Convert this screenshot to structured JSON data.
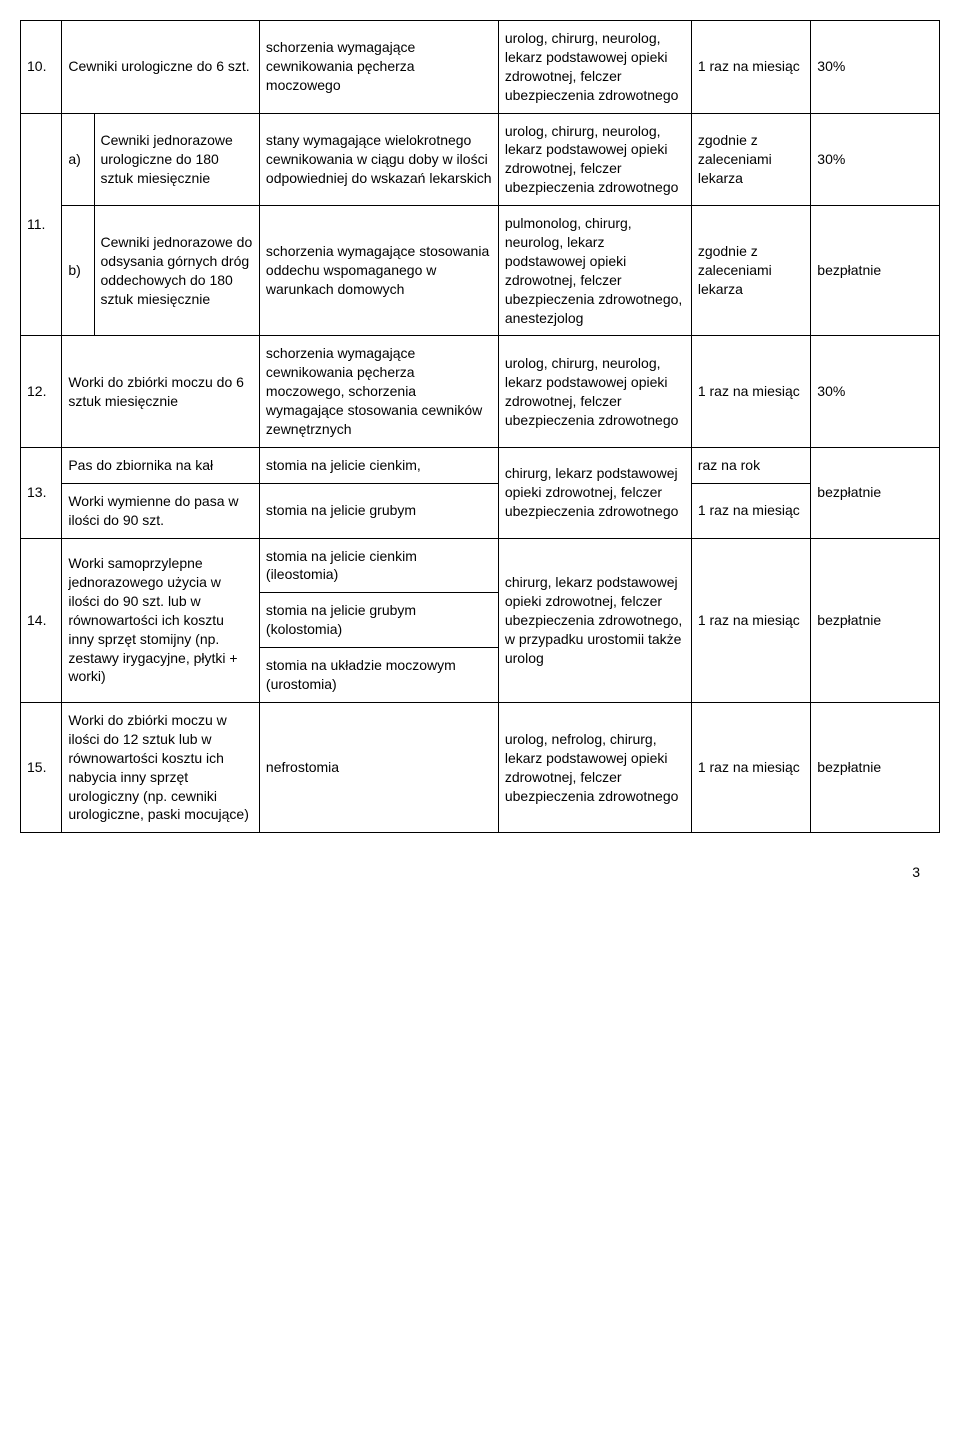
{
  "row10": {
    "num": "10.",
    "name": "Cewniki urologiczne do 6 szt.",
    "indication": "schorzenia wymagające cewnikowania pęcherza moczowego",
    "prescriber": "urolog, chirurg, neurolog, lekarz podstawowej opieki zdrowotnej, felczer ubezpieczenia zdrowotnego",
    "freq": "1 raz na miesiąc",
    "pay": "30%"
  },
  "row11": {
    "num": "11.",
    "a": {
      "letter": "a)",
      "name": "Cewniki jednorazowe urologiczne do 180 sztuk miesięcznie",
      "indication": "stany wymagające wielokrotnego cewnikowania w ciągu doby w ilości odpowiedniej do wskazań lekarskich",
      "prescriber": "urolog, chirurg, neurolog, lekarz podstawowej opieki zdrowotnej, felczer ubezpieczenia zdrowotnego",
      "freq": "zgodnie z zaleceniami lekarza",
      "pay": "30%"
    },
    "b": {
      "letter": "b)",
      "name": "Cewniki jednorazowe do odsysania górnych dróg oddechowych do 180 sztuk miesięcznie",
      "indication": "schorzenia wymagające stosowania oddechu wspomaganego w warunkach domowych",
      "prescriber": "pulmonolog, chirurg, neurolog, lekarz podstawowej opieki zdrowotnej, felczer ubezpieczenia zdrowotnego, anestezjolog",
      "freq": "zgodnie z zaleceniami lekarza",
      "pay": "bezpłatnie"
    }
  },
  "row12": {
    "num": "12.",
    "name": "Worki do zbiórki moczu do 6 sztuk miesięcznie",
    "indication": "schorzenia wymagające cewnikowania pęcherza moczowego, schorzenia wymagające stosowania cewników zewnętrznych",
    "prescriber": "urolog, chirurg, neurolog, lekarz podstawowej opieki zdrowotnej, felczer ubezpieczenia zdrowotnego",
    "freq": "1 raz na miesiąc",
    "pay": "30%"
  },
  "row13": {
    "num": "13.",
    "r1": {
      "name": "Pas do zbiornika na kał",
      "indication": "stomia na jelicie cienkim,",
      "freq": "raz na rok"
    },
    "r2": {
      "name": "Worki wymienne do pasa w ilości do 90 szt.",
      "indication": "stomia na jelicie grubym",
      "freq": "1 raz na miesiąc"
    },
    "prescriber": "chirurg, lekarz podstawowej opieki zdrowotnej, felczer ubezpieczenia zdrowotnego",
    "pay": "bezpłatnie"
  },
  "row14": {
    "num": "14.",
    "name": "Worki samoprzylepne jednorazowego użycia w ilości do 90 szt. lub w równowartości ich kosztu inny sprzęt stomijny (np. zestawy irygacyjne, płytki + worki)",
    "ind1": "stomia na jelicie cienkim (ileostomia)",
    "ind2": "stomia na jelicie grubym (kolostomia)",
    "ind3": "stomia na układzie moczowym (urostomia)",
    "prescriber": "chirurg, lekarz podstawowej opieki zdrowotnej, felczer ubezpieczenia zdrowotnego, w przypadku urostomii także urolog",
    "freq": "1 raz na miesiąc",
    "pay": "bezpłatnie"
  },
  "row15": {
    "num": "15.",
    "name": "Worki do zbiórki moczu w ilości do 12 sztuk lub w równowartości kosztu ich nabycia inny sprzęt urologiczny (np. cewniki urologiczne, paski mocujące)",
    "indication": "nefrostomia",
    "prescriber": "urolog, nefrolog, chirurg, lekarz podstawowej opieki zdrowotnej, felczer ubezpieczenia zdrowotnego",
    "freq": "1 raz na miesiąc",
    "pay": "bezpłatnie"
  },
  "pageNumber": "3"
}
